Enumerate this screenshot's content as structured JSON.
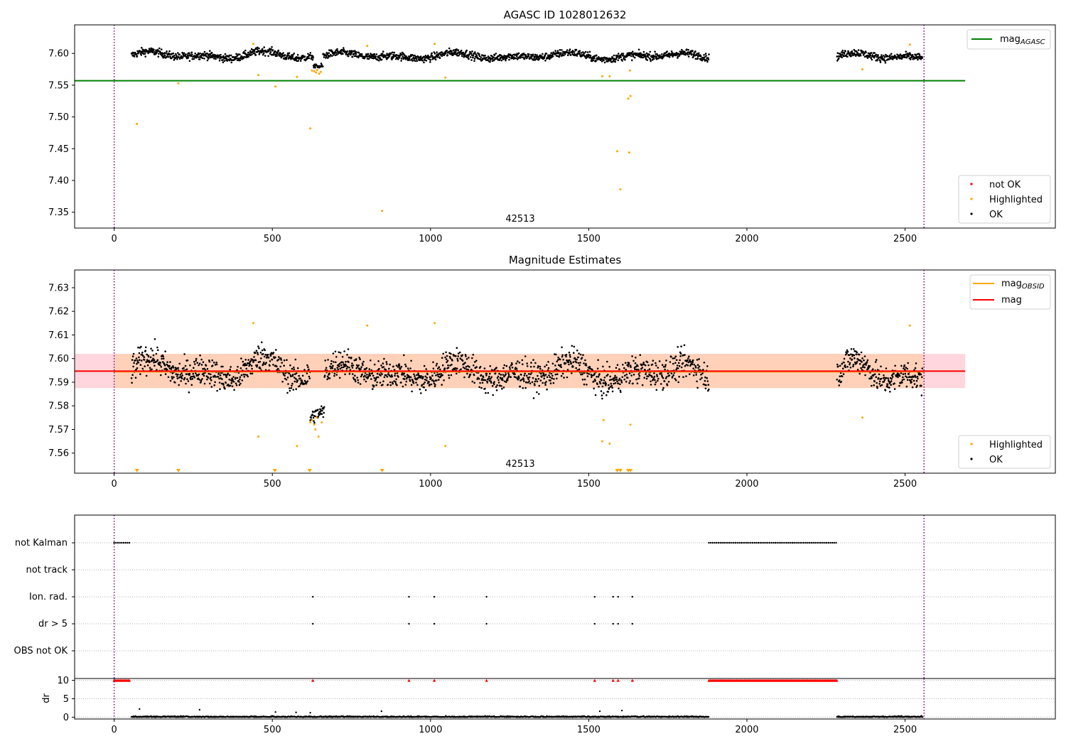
{
  "colors": {
    "ok": "#000000",
    "highlighted": "#ffa500",
    "not_ok": "#ff0000",
    "mag_agasc_line": "#008000",
    "mag_obsid_line": "#ffa500",
    "mag_line": "#ff0000",
    "band_mag": "#ffc0cb",
    "band_obsid": "#ffd0b0",
    "obs_boundary": "#800080",
    "grid": "#b0b0b0"
  },
  "chart_data": [
    {
      "type": "scatter",
      "title": "AGASC ID 1028012632",
      "annotation": "42513",
      "xlim": [
        -125,
        2975
      ],
      "ylim": [
        7.325,
        7.645
      ],
      "x_ticks": [
        0,
        500,
        1000,
        1500,
        2000,
        2500
      ],
      "y_ticks": [
        7.35,
        7.4,
        7.45,
        7.5,
        7.55,
        7.6
      ],
      "y_tick_labels": [
        "7.35",
        "7.40",
        "7.45",
        "7.50",
        "7.55",
        "7.60"
      ],
      "hlines": [
        {
          "name": "mag_AGASC",
          "y": 7.557,
          "x_range": [
            -125,
            2690
          ]
        }
      ],
      "vlines": [
        0,
        2560
      ],
      "legend_top": {
        "position": "top-right",
        "entries": [
          {
            "base": "mag",
            "sub": "AGASC"
          }
        ]
      },
      "legend_bottom": {
        "position": "bottom-right",
        "entries": [
          "not OK",
          "Highlighted",
          "OK"
        ]
      },
      "ok_segments": [
        {
          "x_start": 55,
          "x_end": 630,
          "level": 7.597,
          "wave_amp": 0.007,
          "jitter": 0.006
        },
        {
          "x_start": 630,
          "x_end": 660,
          "level": 7.578,
          "wave_amp": 0.003,
          "jitter": 0.004
        },
        {
          "x_start": 660,
          "x_end": 1880,
          "level": 7.596,
          "wave_amp": 0.006,
          "jitter": 0.006
        },
        {
          "x_start": 2285,
          "x_end": 2555,
          "level": 7.595,
          "wave_amp": 0.007,
          "jitter": 0.006
        }
      ],
      "highlighted_points": [
        {
          "x": 72,
          "y": 7.489
        },
        {
          "x": 203,
          "y": 7.553
        },
        {
          "x": 440,
          "y": 7.615
        },
        {
          "x": 456,
          "y": 7.566
        },
        {
          "x": 510,
          "y": 7.548
        },
        {
          "x": 578,
          "y": 7.563
        },
        {
          "x": 620,
          "y": 7.482
        },
        {
          "x": 625,
          "y": 7.573
        },
        {
          "x": 632,
          "y": 7.572
        },
        {
          "x": 638,
          "y": 7.57
        },
        {
          "x": 642,
          "y": 7.574
        },
        {
          "x": 648,
          "y": 7.568
        },
        {
          "x": 653,
          "y": 7.571
        },
        {
          "x": 800,
          "y": 7.612
        },
        {
          "x": 847,
          "y": 7.352
        },
        {
          "x": 1013,
          "y": 7.615
        },
        {
          "x": 1047,
          "y": 7.562
        },
        {
          "x": 1543,
          "y": 7.564
        },
        {
          "x": 1566,
          "y": 7.564
        },
        {
          "x": 1590,
          "y": 7.446
        },
        {
          "x": 1600,
          "y": 7.386
        },
        {
          "x": 1625,
          "y": 7.529
        },
        {
          "x": 1628,
          "y": 7.444
        },
        {
          "x": 1630,
          "y": 7.573
        },
        {
          "x": 1632,
          "y": 7.533
        },
        {
          "x": 2365,
          "y": 7.575
        },
        {
          "x": 2515,
          "y": 7.614
        }
      ]
    },
    {
      "type": "scatter",
      "title": "Magnitude Estimates",
      "annotation": "42513",
      "xlim": [
        -125,
        2975
      ],
      "ylim": [
        7.5515,
        7.6375
      ],
      "x_ticks": [
        0,
        500,
        1000,
        1500,
        2000,
        2500
      ],
      "y_ticks": [
        7.56,
        7.57,
        7.58,
        7.59,
        7.6,
        7.61,
        7.62,
        7.63
      ],
      "y_tick_labels": [
        "7.56",
        "7.57",
        "7.58",
        "7.59",
        "7.60",
        "7.61",
        "7.62",
        "7.63"
      ],
      "hlines": [
        {
          "name": "mag_OBSID",
          "y": 7.5945,
          "x_range": [
            0,
            2560
          ]
        },
        {
          "name": "mag",
          "y": 7.5947,
          "x_range": [
            -125,
            2690
          ]
        }
      ],
      "bands": [
        {
          "name": "mag",
          "y_low": 7.5875,
          "y_high": 7.602,
          "x_range": [
            -125,
            2690
          ]
        },
        {
          "name": "mag_OBSID",
          "y_low": 7.5875,
          "y_high": 7.602,
          "x_range": [
            0,
            2560
          ]
        }
      ],
      "vlines": [
        0,
        2560
      ],
      "legend_top": {
        "position": "top-right",
        "entries": [
          {
            "base": "mag",
            "sub": "OBSID"
          },
          {
            "base": "mag",
            "sub": ""
          }
        ]
      },
      "legend_bottom": {
        "position": "bottom-right",
        "entries": [
          "Highlighted",
          "OK"
        ]
      },
      "ok_segments": [
        {
          "x_start": 55,
          "x_end": 620,
          "level": 7.595,
          "wave_amp": 0.006,
          "jitter": 0.006
        },
        {
          "x_start": 620,
          "x_end": 665,
          "level": 7.575,
          "wave_amp": 0.003,
          "jitter": 0.003
        },
        {
          "x_start": 665,
          "x_end": 1880,
          "level": 7.594,
          "wave_amp": 0.005,
          "jitter": 0.006
        },
        {
          "x_start": 2285,
          "x_end": 2555,
          "level": 7.593,
          "wave_amp": 0.008,
          "jitter": 0.006
        }
      ],
      "highlighted_points": [
        {
          "x": 440,
          "y": 7.615
        },
        {
          "x": 456,
          "y": 7.567
        },
        {
          "x": 578,
          "y": 7.563
        },
        {
          "x": 620,
          "y": 7.573
        },
        {
          "x": 626,
          "y": 7.574
        },
        {
          "x": 632,
          "y": 7.572
        },
        {
          "x": 636,
          "y": 7.57
        },
        {
          "x": 640,
          "y": 7.575
        },
        {
          "x": 646,
          "y": 7.567
        },
        {
          "x": 656,
          "y": 7.573
        },
        {
          "x": 800,
          "y": 7.614
        },
        {
          "x": 1013,
          "y": 7.615
        },
        {
          "x": 1047,
          "y": 7.563
        },
        {
          "x": 1543,
          "y": 7.565
        },
        {
          "x": 1547,
          "y": 7.574
        },
        {
          "x": 1566,
          "y": 7.564
        },
        {
          "x": 1632,
          "y": 7.572
        },
        {
          "x": 2365,
          "y": 7.575
        },
        {
          "x": 2515,
          "y": 7.614
        }
      ],
      "below_range_markers": [
        72,
        203,
        508,
        618,
        847,
        1590,
        1600,
        1625,
        1632
      ]
    },
    {
      "type": "scatter",
      "title": "",
      "xlim": [
        -125,
        2975
      ],
      "x_ticks": [
        0,
        500,
        1000,
        1500,
        2000,
        2500
      ],
      "vlines": [
        0,
        2560
      ],
      "flag_rows": [
        {
          "label": "not Kalman",
          "segments": [
            [
              0,
              50
            ],
            [
              1880,
              2285
            ]
          ],
          "step": 6
        },
        {
          "label": "not track",
          "segments": [],
          "step": 6
        },
        {
          "label": "Ion. rad.",
          "points": [
            628,
            932,
            1012,
            1177,
            1519,
            1577,
            1593,
            1638
          ]
        },
        {
          "label": "dr > 5",
          "points": [
            628,
            932,
            1012,
            1177,
            1519,
            1577,
            1593,
            1638
          ]
        },
        {
          "label": "OBS not OK",
          "segments": [],
          "step": 6
        }
      ],
      "dr_panel": {
        "ylabel": "dr",
        "ylim": [
          -0.5,
          10.5
        ],
        "y_ticks": [
          0,
          5,
          10
        ],
        "clipped_value": 10,
        "clipped_segments": [
          [
            0,
            50
          ],
          [
            1880,
            2285
          ]
        ],
        "clipped_points": [
          628,
          932,
          1012,
          1177,
          1519,
          1577,
          1593,
          1638
        ],
        "baseline_segments": [
          [
            55,
            1880
          ],
          [
            2285,
            2555
          ]
        ],
        "outliers": [
          {
            "x": 80,
            "y": 2.2
          },
          {
            "x": 270,
            "y": 2.0
          },
          {
            "x": 510,
            "y": 1.4
          },
          {
            "x": 575,
            "y": 1.3
          },
          {
            "x": 620,
            "y": 1.2
          },
          {
            "x": 845,
            "y": 1.6
          },
          {
            "x": 1535,
            "y": 1.6
          },
          {
            "x": 1605,
            "y": 1.8
          }
        ]
      }
    }
  ]
}
